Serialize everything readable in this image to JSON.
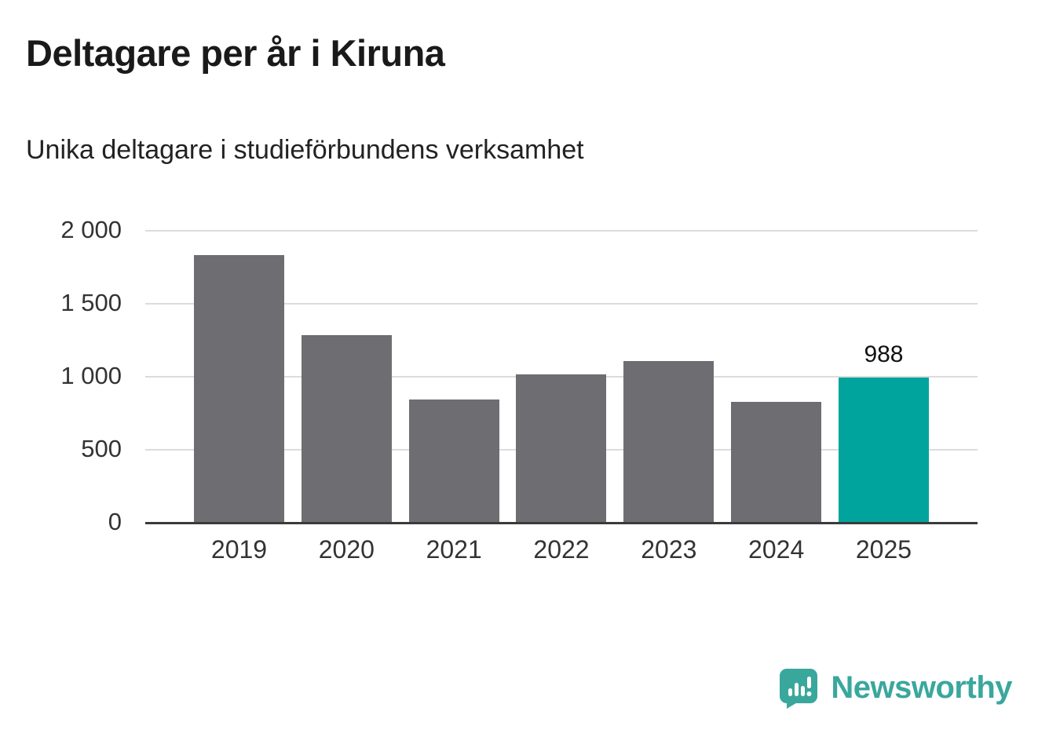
{
  "title": "Deltagare per år i Kiruna",
  "subtitle": "Unika deltagare i studieförbundens verksamhet",
  "chart_data": {
    "type": "bar",
    "title": "Deltagare per år i Kiruna",
    "subtitle": "Unika deltagare i studieförbundens verksamhet",
    "categories": [
      "2019",
      "2020",
      "2021",
      "2022",
      "2023",
      "2024",
      "2025"
    ],
    "values": [
      1830,
      1280,
      840,
      1010,
      1100,
      825,
      988
    ],
    "highlight_index": 6,
    "highlight_label": "988",
    "xlabel": "",
    "ylabel": "",
    "ylim": [
      0,
      2000
    ],
    "yticks": [
      0,
      500,
      1000,
      1500,
      2000
    ],
    "ytick_labels": [
      "0",
      "500",
      "1 000",
      "1 500",
      "2 000"
    ],
    "grid": "horizontal",
    "legend": "none",
    "bar_color": "#6e6e72",
    "highlight_color": "#00a49c",
    "axis_color": "#3b3b3b",
    "gridline_color": "#dcdcdc"
  },
  "branding": {
    "logo_text": "Newsworthy",
    "logo_color": "#3aa79d",
    "logo_icon": "newsworthy-bar-chart-bubble"
  }
}
